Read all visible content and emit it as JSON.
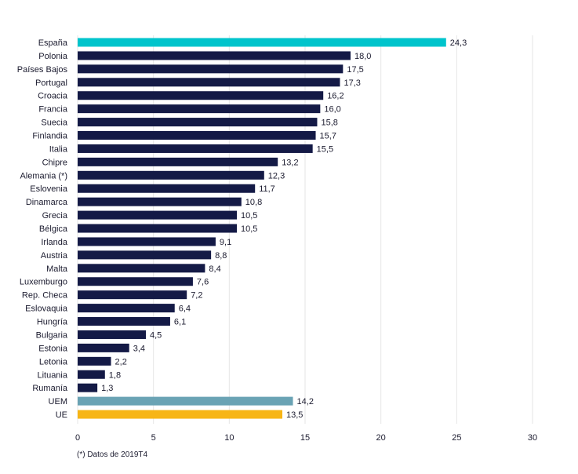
{
  "chart_data": {
    "type": "bar",
    "orientation": "horizontal",
    "categories": [
      "España",
      "Polonia",
      "Países Bajos",
      "Portugal",
      "Croacia",
      "Francia",
      "Suecia",
      "Finlandia",
      "Italia",
      "Chipre",
      "Alemania (*)",
      "Eslovenia",
      "Dinamarca",
      "Grecia",
      "Bélgica",
      "Irlanda",
      "Austria",
      "Malta",
      "Luxemburgo",
      "Rep. Checa",
      "Eslovaquia",
      "Hungría",
      "Bulgaria",
      "Estonia",
      "Letonia",
      "Lituania",
      "Rumanía",
      "UEM",
      "UE"
    ],
    "values": [
      24.3,
      18.0,
      17.5,
      17.3,
      16.2,
      16.0,
      15.8,
      15.7,
      15.5,
      13.2,
      12.3,
      11.7,
      10.8,
      10.5,
      10.5,
      9.1,
      8.8,
      8.4,
      7.6,
      7.2,
      6.4,
      6.1,
      4.5,
      3.4,
      2.2,
      1.8,
      1.3,
      14.2,
      13.5
    ],
    "value_labels": [
      "24,3",
      "18,0",
      "17,5",
      "17,3",
      "16,2",
      "16,0",
      "15,8",
      "15,7",
      "15,5",
      "13,2",
      "12,3",
      "11,7",
      "10,8",
      "10,5",
      "10,5",
      "9,1",
      "8,8",
      "8,4",
      "7,6",
      "7,2",
      "6,4",
      "6,1",
      "4,5",
      "3,4",
      "2,2",
      "1,8",
      "1,3",
      "14,2",
      "13,5"
    ],
    "bar_colors": [
      "#00c4cc",
      "#141a46",
      "#141a46",
      "#141a46",
      "#141a46",
      "#141a46",
      "#141a46",
      "#141a46",
      "#141a46",
      "#141a46",
      "#141a46",
      "#141a46",
      "#141a46",
      "#141a46",
      "#141a46",
      "#141a46",
      "#141a46",
      "#141a46",
      "#141a46",
      "#141a46",
      "#141a46",
      "#141a46",
      "#141a46",
      "#141a46",
      "#141a46",
      "#141a46",
      "#141a46",
      "#6aa3b4",
      "#f7b516"
    ],
    "xlim": [
      0,
      30
    ],
    "xticks": [
      "0",
      "5",
      "10",
      "15",
      "20",
      "25",
      "30"
    ],
    "grid": "vertical",
    "title": "",
    "xlabel": "",
    "ylabel": ""
  },
  "footnote": "(*) Datos de 2019T4"
}
